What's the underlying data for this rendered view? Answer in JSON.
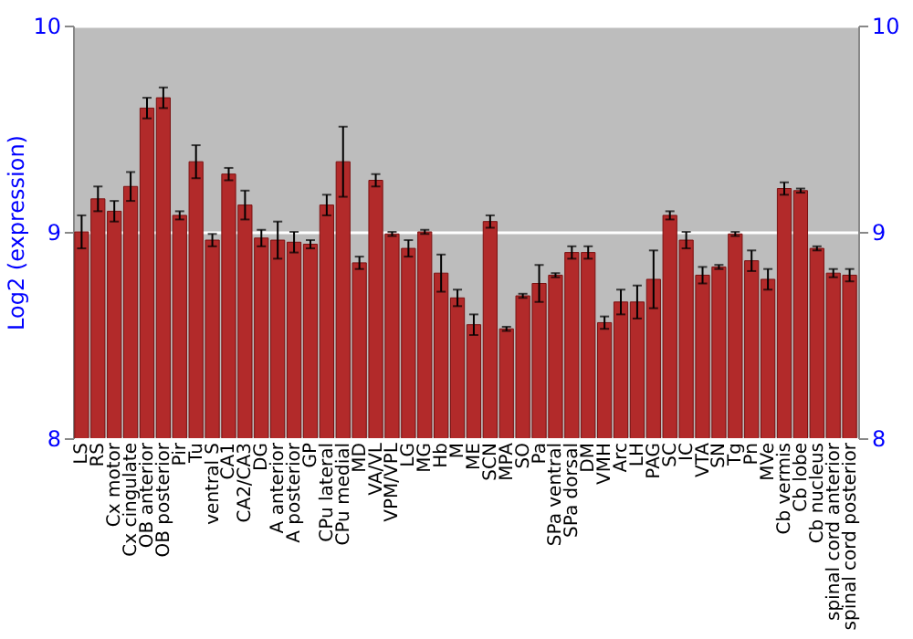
{
  "chart_data": {
    "type": "bar",
    "ylabel": "Log2 (expression)",
    "categories": [
      "LS",
      "RS",
      "Cx motor",
      "Cx cingulate",
      "OB anterior",
      "OB posterior",
      "Pir",
      "Tu",
      "ventral S",
      "CA1",
      "CA2/CA3",
      "DG",
      "A anterior",
      "A posterior",
      "GP",
      "CPu lateral",
      "CPu medial",
      "MD",
      "VA/VL",
      "VPM/VPL",
      "LG",
      "MG",
      "Hb",
      "M",
      "ME",
      "SCN",
      "MPA",
      "SO",
      "Pa",
      "SPa ventral",
      "SPa dorsal",
      "DM",
      "VMH",
      "Arc",
      "LH",
      "PAG",
      "SC",
      "IC",
      "VTA",
      "SN",
      "Tg",
      "Pn",
      "MVe",
      "Cb vermis",
      "Cb lobe",
      "Cb nucleus",
      "spinal cord anterior",
      "spinal cord posterior"
    ],
    "values": [
      9.0,
      9.16,
      9.1,
      9.22,
      9.6,
      9.65,
      9.08,
      9.34,
      8.96,
      9.28,
      9.13,
      8.97,
      8.96,
      8.95,
      8.94,
      9.13,
      9.34,
      8.85,
      9.25,
      8.99,
      8.92,
      9.0,
      8.8,
      8.68,
      8.55,
      9.05,
      8.53,
      8.69,
      8.75,
      8.79,
      8.9,
      8.9,
      8.56,
      8.66,
      8.66,
      8.77,
      9.08,
      8.96,
      8.79,
      8.83,
      8.99,
      8.86,
      8.77,
      9.21,
      9.2,
      8.92,
      8.8,
      8.79
    ],
    "errors": [
      0.08,
      0.06,
      0.05,
      0.07,
      0.05,
      0.05,
      0.02,
      0.08,
      0.03,
      0.03,
      0.07,
      0.04,
      0.09,
      0.05,
      0.02,
      0.05,
      0.17,
      0.03,
      0.03,
      0.01,
      0.04,
      0.01,
      0.09,
      0.04,
      0.05,
      0.03,
      0.01,
      0.01,
      0.09,
      0.01,
      0.03,
      0.03,
      0.03,
      0.06,
      0.08,
      0.14,
      0.02,
      0.04,
      0.04,
      0.01,
      0.01,
      0.05,
      0.05,
      0.03,
      0.01,
      0.01,
      0.02,
      0.03
    ],
    "color": "#b22a2a",
    "ylim": [
      8,
      10
    ],
    "yticks": [
      8,
      9,
      10
    ],
    "y2lim": [
      8,
      10
    ],
    "y2ticks": [
      8,
      9,
      10
    ],
    "grid": "y"
  }
}
